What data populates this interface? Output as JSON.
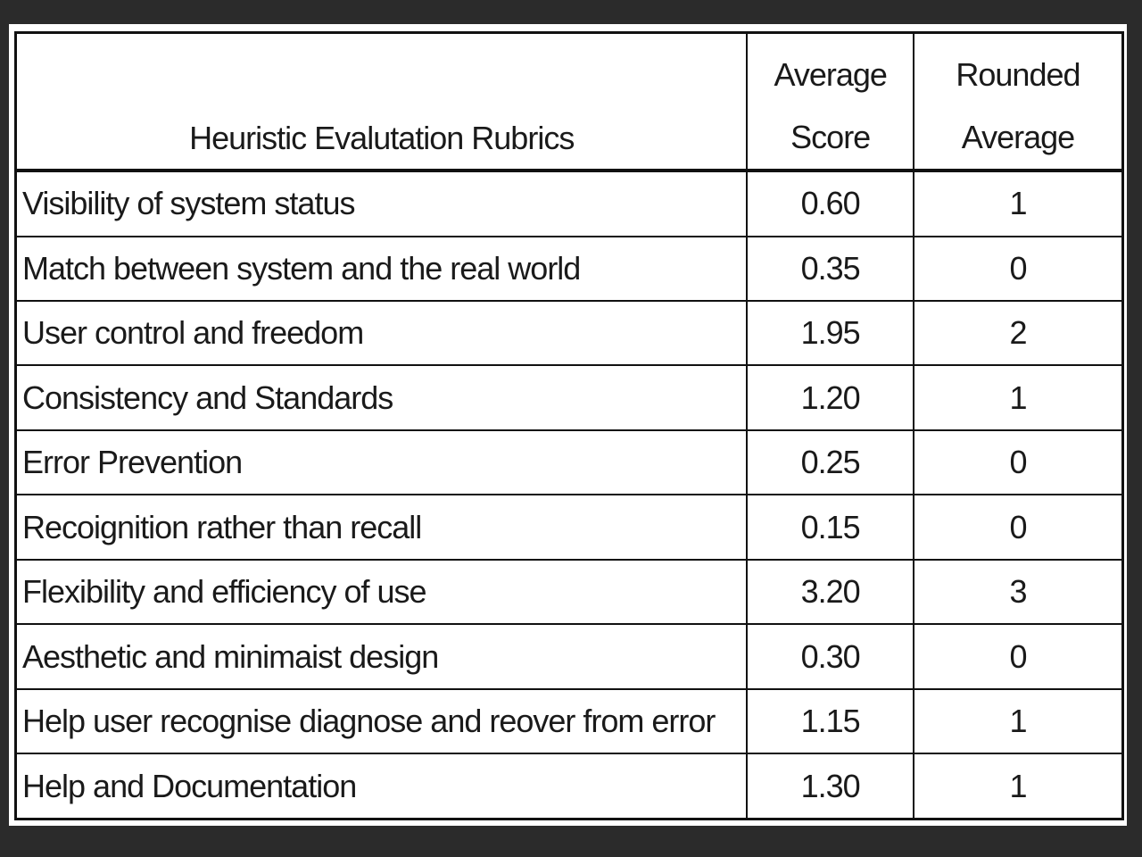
{
  "table": {
    "headers": {
      "rubric": "Heuristic Evalutation Rubrics",
      "average_line1": "Average",
      "average_line2": "Score",
      "rounded_line1": "Rounded",
      "rounded_line2": "Average"
    },
    "rows": [
      {
        "rubric": "Visibility of system status",
        "average": "0.60",
        "rounded": "1"
      },
      {
        "rubric": "Match between system and the real world",
        "average": "0.35",
        "rounded": "0"
      },
      {
        "rubric": "User control and freedom",
        "average": "1.95",
        "rounded": "2"
      },
      {
        "rubric": "Consistency and Standards",
        "average": "1.20",
        "rounded": "1"
      },
      {
        "rubric": "Error Prevention",
        "average": "0.25",
        "rounded": "0"
      },
      {
        "rubric": "Recoignition rather than recall",
        "average": "0.15",
        "rounded": "0"
      },
      {
        "rubric": "Flexibility and efficiency of use",
        "average": "3.20",
        "rounded": "3"
      },
      {
        "rubric": "Aesthetic and minimaist design",
        "average": "0.30",
        "rounded": "0"
      },
      {
        "rubric": "Help user recognise diagnose and reover from error",
        "average": "1.15",
        "rounded": "1"
      },
      {
        "rubric": "Help and Documentation",
        "average": "1.30",
        "rounded": "1"
      }
    ]
  }
}
